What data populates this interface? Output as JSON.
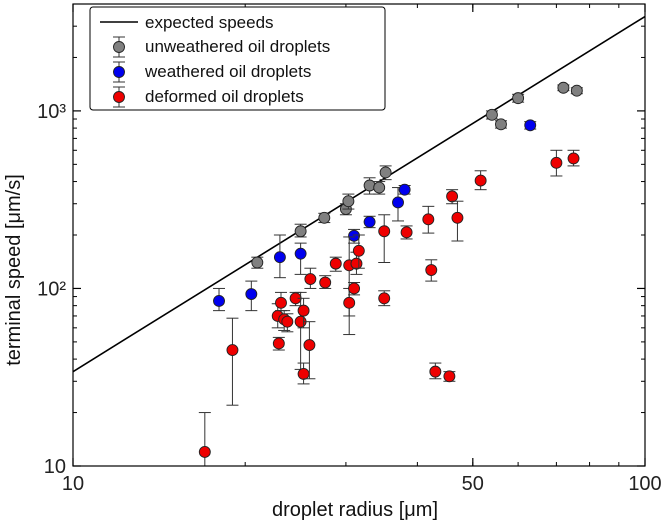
{
  "chart_data": {
    "type": "scatter",
    "title": "",
    "xlabel": "droplet radius [μm]",
    "ylabel": "terminal speed [μm/s]",
    "xscale": "log",
    "yscale": "log",
    "xlim": [
      10,
      100
    ],
    "ylim": [
      10,
      4000
    ],
    "x_ticks": [
      {
        "value": 10,
        "label": "10"
      },
      {
        "value": 50,
        "label": "50"
      },
      {
        "value": 100,
        "label": "100"
      }
    ],
    "y_ticks": [
      {
        "value": 10,
        "label": "10"
      },
      {
        "value": 100,
        "label": "10²"
      },
      {
        "value": 1000,
        "label": "10³"
      }
    ],
    "legend_position": "top-left",
    "grid": false,
    "line_series": {
      "name": "expected speeds",
      "color": "#000000",
      "points": [
        {
          "x": 10,
          "y": 34
        },
        {
          "x": 100,
          "y": 3400
        }
      ]
    },
    "series": [
      {
        "name": "unweathered oil droplets",
        "color": "#808080",
        "points": [
          {
            "x": 21,
            "y": 140,
            "lo": 130,
            "hi": 150
          },
          {
            "x": 25,
            "y": 210,
            "lo": 195,
            "hi": 230
          },
          {
            "x": 27.5,
            "y": 250,
            "lo": 235,
            "hi": 265
          },
          {
            "x": 30,
            "y": 280,
            "lo": 260,
            "hi": 300
          },
          {
            "x": 30.3,
            "y": 310,
            "lo": 280,
            "hi": 340
          },
          {
            "x": 33,
            "y": 380,
            "lo": 340,
            "hi": 420
          },
          {
            "x": 34.3,
            "y": 370,
            "lo": 340,
            "hi": 400
          },
          {
            "x": 35.2,
            "y": 450,
            "lo": 410,
            "hi": 490
          },
          {
            "x": 54,
            "y": 950,
            "lo": 900,
            "hi": 1000
          },
          {
            "x": 56,
            "y": 840,
            "lo": 800,
            "hi": 880
          },
          {
            "x": 60,
            "y": 1180,
            "lo": 1120,
            "hi": 1240
          },
          {
            "x": 72,
            "y": 1350,
            "lo": 1300,
            "hi": 1400
          },
          {
            "x": 76,
            "y": 1300,
            "lo": 1250,
            "hi": 1350
          }
        ]
      },
      {
        "name": "weathered oil droplets",
        "color": "#0000ee",
        "points": [
          {
            "x": 18,
            "y": 85,
            "lo": 75,
            "hi": 100
          },
          {
            "x": 20.5,
            "y": 93,
            "lo": 75,
            "hi": 110
          },
          {
            "x": 23,
            "y": 150,
            "lo": 115,
            "hi": 200
          },
          {
            "x": 25,
            "y": 157,
            "lo": 120,
            "hi": 180
          },
          {
            "x": 31,
            "y": 198,
            "lo": 180,
            "hi": 215
          },
          {
            "x": 33,
            "y": 237,
            "lo": 220,
            "hi": 255
          },
          {
            "x": 37,
            "y": 305,
            "lo": 240,
            "hi": 370
          },
          {
            "x": 38,
            "y": 360,
            "lo": 340,
            "hi": 380
          },
          {
            "x": 63,
            "y": 830,
            "lo": 790,
            "hi": 870
          }
        ]
      },
      {
        "name": "deformed oil droplets",
        "color": "#ee0000",
        "points": [
          {
            "x": 17,
            "y": 12,
            "lo": 10,
            "hi": 20
          },
          {
            "x": 19,
            "y": 45,
            "lo": 22,
            "hi": 68
          },
          {
            "x": 22.8,
            "y": 70,
            "lo": 60,
            "hi": 82
          },
          {
            "x": 23.1,
            "y": 83,
            "lo": 75,
            "hi": 95
          },
          {
            "x": 23.4,
            "y": 67,
            "lo": 58,
            "hi": 75
          },
          {
            "x": 23.7,
            "y": 65,
            "lo": 57,
            "hi": 72
          },
          {
            "x": 22.9,
            "y": 49,
            "lo": 45,
            "hi": 53
          },
          {
            "x": 24.5,
            "y": 88,
            "lo": 80,
            "hi": 95
          },
          {
            "x": 25,
            "y": 65,
            "lo": 35,
            "hi": 95
          },
          {
            "x": 25.3,
            "y": 75,
            "lo": 60,
            "hi": 88
          },
          {
            "x": 25.3,
            "y": 33,
            "lo": 29,
            "hi": 38
          },
          {
            "x": 25.9,
            "y": 48,
            "lo": 31,
            "hi": 65
          },
          {
            "x": 26,
            "y": 113,
            "lo": 100,
            "hi": 130
          },
          {
            "x": 27.6,
            "y": 108,
            "lo": 100,
            "hi": 118
          },
          {
            "x": 28.8,
            "y": 138,
            "lo": 125,
            "hi": 150
          },
          {
            "x": 30.4,
            "y": 135,
            "lo": 55,
            "hi": 195
          },
          {
            "x": 30.4,
            "y": 83,
            "lo": 70,
            "hi": 100
          },
          {
            "x": 31,
            "y": 100,
            "lo": 92,
            "hi": 108
          },
          {
            "x": 31.3,
            "y": 138,
            "lo": 120,
            "hi": 160
          },
          {
            "x": 31.6,
            "y": 163,
            "lo": 130,
            "hi": 200
          },
          {
            "x": 35,
            "y": 210,
            "lo": 140,
            "hi": 260
          },
          {
            "x": 35,
            "y": 88,
            "lo": 80,
            "hi": 97
          },
          {
            "x": 38.3,
            "y": 207,
            "lo": 190,
            "hi": 225
          },
          {
            "x": 41.8,
            "y": 245,
            "lo": 205,
            "hi": 290
          },
          {
            "x": 42.3,
            "y": 127,
            "lo": 110,
            "hi": 145
          },
          {
            "x": 43,
            "y": 34,
            "lo": 31,
            "hi": 38
          },
          {
            "x": 45.5,
            "y": 32,
            "lo": 30,
            "hi": 34
          },
          {
            "x": 46,
            "y": 330,
            "lo": 300,
            "hi": 360
          },
          {
            "x": 47,
            "y": 250,
            "lo": 185,
            "hi": 310
          },
          {
            "x": 51.6,
            "y": 405,
            "lo": 360,
            "hi": 460
          },
          {
            "x": 70,
            "y": 510,
            "lo": 430,
            "hi": 600
          },
          {
            "x": 75,
            "y": 540,
            "lo": 490,
            "hi": 600
          }
        ]
      }
    ]
  }
}
